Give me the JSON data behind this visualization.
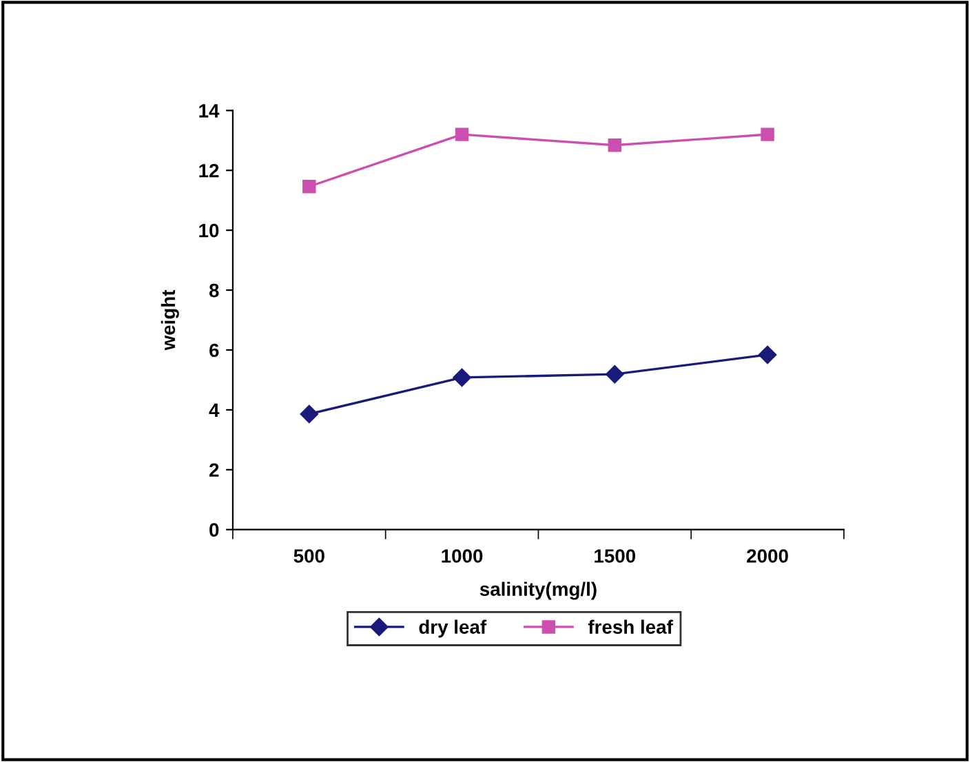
{
  "chart_data": {
    "type": "line",
    "xlabel": "salinity(mg/l)",
    "ylabel": "weight",
    "categories": [
      "500",
      "1000",
      "1500",
      "2000"
    ],
    "series": [
      {
        "name": "dry leaf",
        "color": "#1a1a7a",
        "marker": "diamond",
        "values": [
          3.86,
          5.08,
          5.19,
          5.84
        ]
      },
      {
        "name": "fresh leaf",
        "color": "#cc4fb0",
        "marker": "square",
        "values": [
          11.46,
          13.2,
          12.84,
          13.2
        ]
      }
    ],
    "ylim": [
      0,
      14
    ],
    "yticks": [
      0,
      2,
      4,
      6,
      8,
      10,
      12,
      14
    ],
    "grid": false,
    "legend": "bottom",
    "line_style": "solid"
  }
}
